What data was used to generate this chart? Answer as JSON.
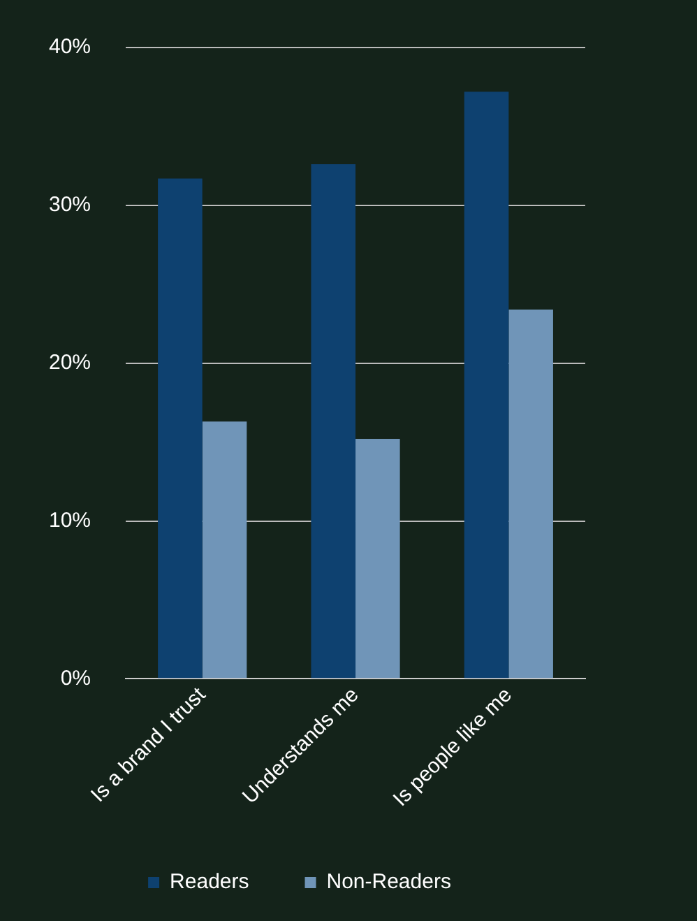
{
  "chart_data": {
    "type": "bar",
    "categories": [
      "Is a brand I trust",
      "Understands me",
      "Is people like me"
    ],
    "series": [
      {
        "name": "Readers",
        "color": "#0e4170",
        "values": [
          31.7,
          32.6,
          37.2
        ]
      },
      {
        "name": "Non-Readers",
        "color": "#7095b8",
        "values": [
          16.3,
          15.2,
          23.4
        ]
      }
    ],
    "ylim": [
      0,
      40
    ],
    "yticks": [
      {
        "value": 0,
        "label": "0%"
      },
      {
        "value": 10,
        "label": "10%"
      },
      {
        "value": 20,
        "label": "20%"
      },
      {
        "value": 30,
        "label": "30%"
      },
      {
        "value": 40,
        "label": "40%"
      }
    ],
    "grid": "y",
    "legend": "bottom"
  }
}
